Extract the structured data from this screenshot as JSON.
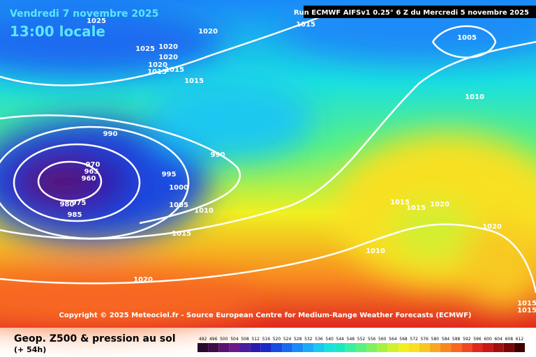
{
  "header": {
    "date": "Vendredi 7 novembre 2025",
    "time": "13:00 locale",
    "run": "Run ECMWF AIFSv1 0.25° 6 Z du Mercredi 5 novembre 2025"
  },
  "isobar_labels": [
    1025,
    1020,
    1015,
    1005,
    1025,
    1020,
    1020,
    1020,
    1015,
    1015,
    1015,
    1010,
    990,
    990,
    970,
    965,
    960,
    995,
    1000,
    1005,
    1010,
    980,
    975,
    985,
    1015,
    1015,
    1015,
    1020,
    1020,
    1010,
    1020,
    1015,
    1015
  ],
  "copyright": "Copyright © 2025 Meteociel.fr - Source European Centre for Medium-Range Weather Forecasts (ECMWF)",
  "footer": {
    "title": "Geop. Z500 & pression au sol",
    "lead": "(+ 54h)"
  },
  "legend": [
    {
      "value": 492,
      "color": "#2a0a2a"
    },
    {
      "value": 496,
      "color": "#3d0d4a"
    },
    {
      "value": 500,
      "color": "#5a1270"
    },
    {
      "value": 504,
      "color": "#6b1a8a"
    },
    {
      "value": 508,
      "color": "#4a1aa0"
    },
    {
      "value": 512,
      "color": "#2a1ab0"
    },
    {
      "value": 516,
      "color": "#1a2ac8"
    },
    {
      "value": 520,
      "color": "#1a4ae0"
    },
    {
      "value": 524,
      "color": "#1a6af0"
    },
    {
      "value": 528,
      "color": "#1a8af8"
    },
    {
      "value": 532,
      "color": "#1aaaf8"
    },
    {
      "value": 536,
      "color": "#1ac8f0"
    },
    {
      "value": 540,
      "color": "#1ae0e0"
    },
    {
      "value": 544,
      "color": "#1ae8c0"
    },
    {
      "value": 548,
      "color": "#3af0a0"
    },
    {
      "value": 552,
      "color": "#5af080"
    },
    {
      "value": 556,
      "color": "#80f060"
    },
    {
      "value": 560,
      "color": "#a8f040"
    },
    {
      "value": 564,
      "color": "#d0f030"
    },
    {
      "value": 568,
      "color": "#f0f020"
    },
    {
      "value": 572,
      "color": "#f8e020"
    },
    {
      "value": 576,
      "color": "#f8c820"
    },
    {
      "value": 580,
      "color": "#f8a820"
    },
    {
      "value": 584,
      "color": "#f88820"
    },
    {
      "value": 588,
      "color": "#f86820"
    },
    {
      "value": 592,
      "color": "#f04820"
    },
    {
      "value": 596,
      "color": "#e02820"
    },
    {
      "value": 600,
      "color": "#c81818"
    },
    {
      "value": 604,
      "color": "#a01010"
    },
    {
      "value": 608,
      "color": "#780808"
    },
    {
      "value": 612,
      "color": "#400000"
    }
  ]
}
